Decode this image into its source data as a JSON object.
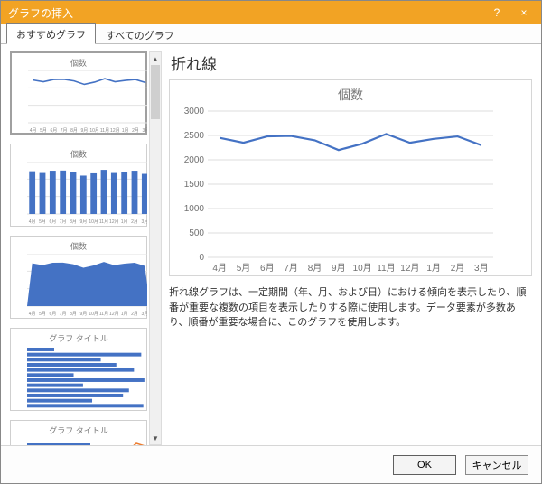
{
  "window": {
    "title": "グラフの挿入",
    "help_icon": "?",
    "close_icon": "×"
  },
  "tabs": {
    "recommended": "おすすめグラフ",
    "all": "すべてのグラフ"
  },
  "thumbnails": {
    "t1": "個数",
    "t2": "個数",
    "t3": "個数",
    "t4": "グラフ タイトル",
    "t5": "グラフ タイトル"
  },
  "main_chart": {
    "type": "line",
    "heading": "折れ線",
    "title": "個数",
    "categories": [
      "4月",
      "5月",
      "6月",
      "7月",
      "8月",
      "9月",
      "10月",
      "11月",
      "12月",
      "1月",
      "2月",
      "3月"
    ],
    "values": [
      2450,
      2350,
      2480,
      2490,
      2400,
      2200,
      2330,
      2530,
      2350,
      2430,
      2480,
      2300
    ],
    "ylim": [
      0,
      3000
    ],
    "ytick_step": 500,
    "line_color": "#4472c4",
    "line_width": 2.2,
    "grid_color": "#dcdcdc",
    "axis_label_color": "#707070",
    "axis_label_fontsize": 10,
    "title_fontsize": 14,
    "background_color": "#ffffff"
  },
  "thumb_charts": {
    "series_color": "#4472c4",
    "grid_color": "#e2e2e2",
    "hbar_accent": "#ed7d31",
    "categories": [
      "4月",
      "5月",
      "6月",
      "7月",
      "8月",
      "9月",
      "10月",
      "11月",
      "12月",
      "1月",
      "2月",
      "3月"
    ],
    "line_values": [
      2450,
      2350,
      2480,
      2490,
      2400,
      2200,
      2330,
      2530,
      2350,
      2430,
      2480,
      2300
    ],
    "bar_values": [
      2450,
      2350,
      2480,
      2490,
      2400,
      2200,
      2330,
      2530,
      2350,
      2430,
      2480,
      2300
    ],
    "area_values": [
      2450,
      2350,
      2480,
      2490,
      2400,
      2200,
      2330,
      2530,
      2350,
      2430,
      2480,
      2300
    ]
  },
  "description": "折れ線グラフは、一定期間（年、月、および日）における傾向を表示したり、順番が重要な複数の項目を表示したりする際に使用します。データ要素が多数あり、順番が重要な場合に、このグラフを使用します。",
  "buttons": {
    "ok": "OK",
    "cancel": "キャンセル"
  }
}
